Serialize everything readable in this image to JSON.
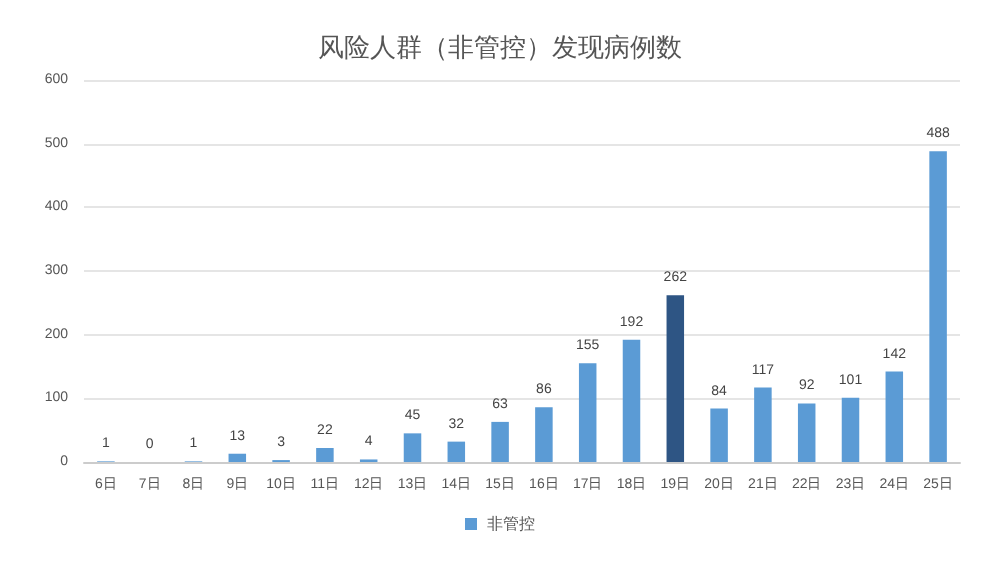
{
  "chart_data": {
    "type": "bar",
    "title": "风险人群（非管控）发现病例数",
    "categories": [
      "6日",
      "7日",
      "8日",
      "9日",
      "10日",
      "11日",
      "12日",
      "13日",
      "14日",
      "15日",
      "16日",
      "17日",
      "18日",
      "19日",
      "20日",
      "21日",
      "22日",
      "23日",
      "24日",
      "25日"
    ],
    "series": [
      {
        "name": "非管控",
        "color": "#5b9bd5",
        "values": [
          1,
          0,
          1,
          13,
          3,
          22,
          4,
          45,
          32,
          63,
          86,
          155,
          192,
          262,
          84,
          117,
          92,
          101,
          142,
          488
        ],
        "colors": [
          "#5b9bd5",
          "#5b9bd5",
          "#5b9bd5",
          "#5b9bd5",
          "#5b9bd5",
          "#5b9bd5",
          "#5b9bd5",
          "#5b9bd5",
          "#5b9bd5",
          "#5b9bd5",
          "#5b9bd5",
          "#5b9bd5",
          "#5b9bd5",
          "#2e5584",
          "#5b9bd5",
          "#5b9bd5",
          "#5b9bd5",
          "#5b9bd5",
          "#5b9bd5",
          "#5b9bd5"
        ]
      }
    ],
    "ylim": [
      0,
      600
    ],
    "yticks": [
      0,
      100,
      200,
      300,
      400,
      500,
      600
    ],
    "grid": "y",
    "legend": "bottom",
    "data_labels": true
  }
}
